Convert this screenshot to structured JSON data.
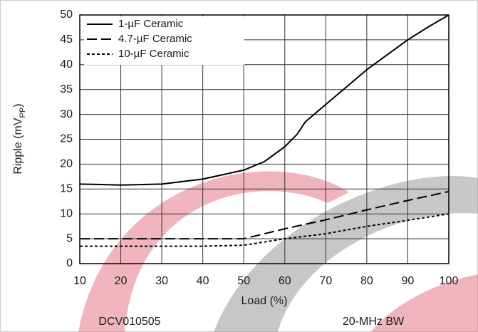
{
  "chart_data": {
    "type": "line",
    "y_label": {
      "text": "Ripple (mV",
      "subscript": "PP",
      "suffix": ")"
    },
    "x_label": "Load (%)",
    "annotations": [
      "DCV010505",
      "20-MHz BW"
    ],
    "xlim": [
      10,
      100
    ],
    "xticks": [
      10,
      20,
      30,
      40,
      50,
      60,
      70,
      80,
      90,
      100
    ],
    "ylim": [
      0,
      50
    ],
    "yticks": [
      0,
      5,
      10,
      15,
      20,
      25,
      30,
      35,
      40,
      45,
      50
    ],
    "grid": true,
    "legend": "upper left",
    "series": [
      {
        "name": "1-µF Ceramic",
        "color": "#000000",
        "dash": "solid",
        "x": [
          10,
          20,
          30,
          40,
          50,
          55,
          60,
          63,
          65,
          70,
          75,
          80,
          85,
          90,
          95,
          100
        ],
        "values": [
          16,
          15.8,
          16,
          17,
          18.8,
          20.5,
          23.5,
          26,
          28.5,
          32,
          35.5,
          39,
          42,
          45,
          47.6,
          50
        ]
      },
      {
        "name": "4.7-µF Ceramic",
        "color": "#000000",
        "dash": "dashed",
        "x": [
          10,
          20,
          30,
          40,
          50,
          60,
          70,
          80,
          90,
          100
        ],
        "values": [
          5,
          5,
          5,
          5,
          5,
          7,
          8.8,
          10.8,
          12.7,
          14.5
        ]
      },
      {
        "name": "10-µF Ceramic",
        "color": "#000000",
        "dash": "dotted",
        "x": [
          10,
          20,
          30,
          40,
          50,
          60,
          70,
          80,
          90,
          100
        ],
        "values": [
          3.5,
          3.5,
          3.5,
          3.5,
          3.7,
          5,
          6,
          7.5,
          8.7,
          10
        ]
      }
    ]
  }
}
